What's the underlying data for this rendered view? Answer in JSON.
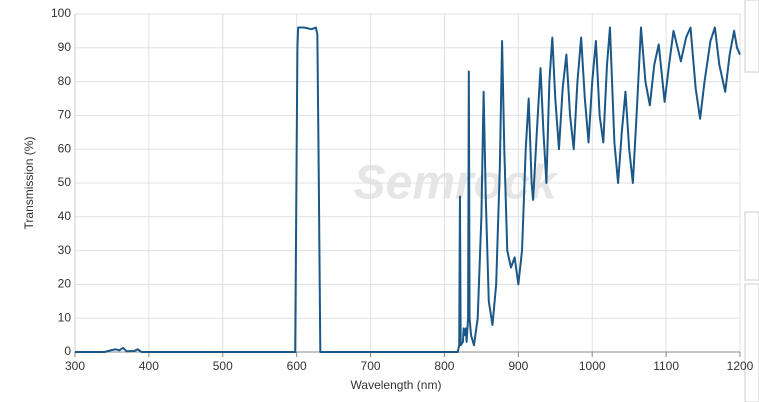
{
  "chart_data": {
    "type": "line",
    "x_label": "Wavelength (nm)",
    "y_label": "Transmission (%)",
    "watermark": "Semrock",
    "color": "#1b5887",
    "grid": true,
    "xlim": [
      300,
      1200
    ],
    "xticks": [
      300,
      400,
      500,
      600,
      700,
      800,
      900,
      1000,
      1100,
      1200
    ],
    "ylim": [
      0,
      100
    ],
    "yticks": [
      0,
      10,
      20,
      30,
      40,
      50,
      60,
      70,
      80,
      90,
      100
    ],
    "x": [
      300,
      340,
      345,
      350,
      355,
      360,
      365,
      370,
      380,
      385,
      390,
      598,
      601,
      602,
      610,
      620,
      626,
      628,
      630,
      632,
      818,
      820,
      821,
      822,
      825,
      826,
      828,
      829,
      830,
      832,
      833,
      834,
      836,
      840,
      845,
      850,
      853,
      856,
      860,
      865,
      870,
      875,
      878,
      881,
      885,
      890,
      895,
      900,
      905,
      910,
      914,
      918,
      920,
      925,
      930,
      934,
      938,
      942,
      946,
      950,
      955,
      960,
      965,
      970,
      975,
      980,
      985,
      990,
      995,
      1000,
      1005,
      1010,
      1015,
      1020,
      1024,
      1030,
      1035,
      1040,
      1045,
      1050,
      1055,
      1060,
      1066,
      1072,
      1078,
      1084,
      1090,
      1098,
      1104,
      1110,
      1120,
      1127,
      1133,
      1140,
      1146,
      1152,
      1160,
      1166,
      1172,
      1180,
      1186,
      1192,
      1196,
      1200
    ],
    "values": [
      0,
      0,
      0.3,
      0.6,
      0.8,
      0.5,
      1.2,
      0.2,
      0.3,
      0.8,
      0,
      0,
      90,
      96,
      96,
      95.5,
      96,
      94,
      50,
      0,
      0,
      2,
      46,
      2,
      3,
      7,
      5,
      7,
      3,
      10,
      83,
      10,
      5,
      2,
      10,
      40,
      77,
      45,
      15,
      8,
      20,
      55,
      92,
      60,
      30,
      25,
      28,
      20,
      30,
      60,
      75,
      50,
      45,
      65,
      84,
      65,
      50,
      80,
      93,
      75,
      60,
      78,
      88,
      70,
      60,
      80,
      93,
      75,
      62,
      80,
      92,
      70,
      62,
      85,
      96,
      62,
      50,
      65,
      77,
      60,
      50,
      70,
      96,
      80,
      73,
      85,
      91,
      74,
      85,
      95,
      86,
      93,
      96,
      78,
      69,
      80,
      92,
      96,
      85,
      77,
      88,
      95,
      90,
      88
    ]
  }
}
